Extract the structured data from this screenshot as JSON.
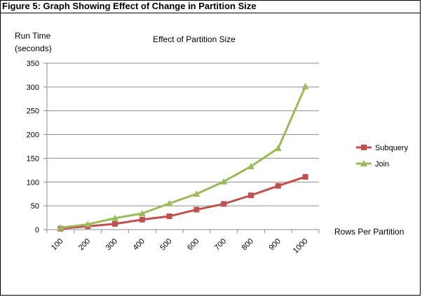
{
  "figure_caption": "Figure 5: Graph Showing Effect of Change in Partition Size",
  "chart_data": {
    "type": "line",
    "title": "Effect of Partition Size",
    "ylabel_lines": [
      "Run Time",
      "(seconds)"
    ],
    "xlabel": "Rows Per Partition",
    "categories": [
      "100",
      "200",
      "300",
      "400",
      "500",
      "600",
      "700",
      "800",
      "900",
      "1000"
    ],
    "ylim": [
      0,
      350
    ],
    "yticks": [
      0,
      50,
      100,
      150,
      200,
      250,
      300,
      350
    ],
    "grid": true,
    "legend_position": "right",
    "series": [
      {
        "name": "Subquery",
        "color": "#c0504d",
        "marker": "square",
        "values": [
          2,
          7,
          12,
          21,
          28,
          42,
          54,
          72,
          92,
          111
        ]
      },
      {
        "name": "Join",
        "color": "#9bbb59",
        "marker": "triangle",
        "values": [
          4,
          11,
          24,
          34,
          55,
          75,
          101,
          133,
          171,
          301
        ]
      }
    ]
  }
}
